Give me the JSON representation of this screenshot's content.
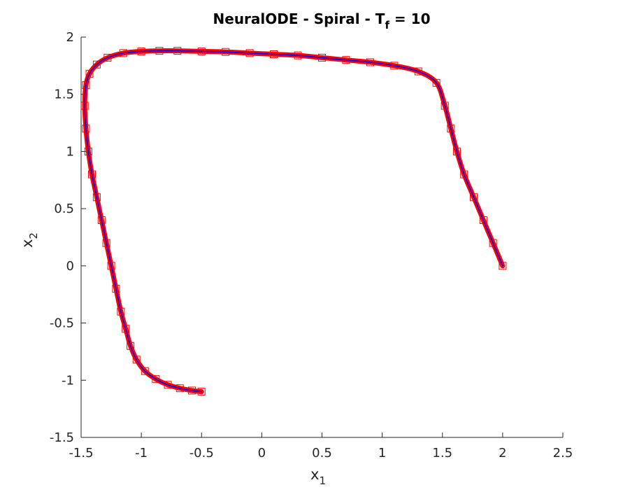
{
  "chart_data": {
    "type": "line",
    "title": {
      "prefix": "NeuralODE - Spiral - T",
      "subscript": "f",
      "suffix": " = 10"
    },
    "xlabel": {
      "base": "x",
      "subscript": "1"
    },
    "ylabel": {
      "base": "x",
      "subscript": "2"
    },
    "xlim": [
      -1.5,
      2.5
    ],
    "ylim": [
      -1.5,
      2
    ],
    "xticks": [
      -1.5,
      -1,
      -0.5,
      0,
      0.5,
      1,
      1.5,
      2,
      2.5
    ],
    "xtick_labels": [
      "-1.5",
      "-1",
      "-0.5",
      "0",
      "0.5",
      "1",
      "1.5",
      "2",
      "2.5"
    ],
    "yticks": [
      -1.5,
      -1,
      -0.5,
      0,
      0.5,
      1,
      1.5,
      2
    ],
    "ytick_labels": [
      "-1.5",
      "-1",
      "-0.5",
      "0",
      "0.5",
      "1",
      "1.5",
      "2"
    ],
    "grid": false,
    "colors": {
      "true_trajectory": "#ff0000",
      "predicted_trajectory": "#0000ff",
      "axes": "#262626"
    },
    "series": [
      {
        "marker": "square",
        "color": "#ff0000",
        "x": [
          2.0,
          1.92,
          1.84,
          1.76,
          1.68,
          1.62,
          1.57,
          1.52,
          1.45,
          1.3,
          1.1,
          0.9,
          0.7,
          0.5,
          0.3,
          0.1,
          -0.1,
          -0.3,
          -0.5,
          -0.7,
          -0.85,
          -1.0,
          -1.15,
          -1.28,
          -1.37,
          -1.43,
          -1.46,
          -1.47,
          -1.46,
          -1.44,
          -1.41,
          -1.37,
          -1.33,
          -1.29,
          -1.25,
          -1.21,
          -1.17,
          -1.13,
          -1.09,
          -1.04,
          -0.97,
          -0.88,
          -0.78,
          -0.68,
          -0.58,
          -0.5
        ],
        "y": [
          0.0,
          0.2,
          0.4,
          0.6,
          0.8,
          1.0,
          1.2,
          1.4,
          1.6,
          1.7,
          1.75,
          1.78,
          1.8,
          1.82,
          1.84,
          1.85,
          1.86,
          1.87,
          1.875,
          1.88,
          1.88,
          1.875,
          1.86,
          1.82,
          1.76,
          1.68,
          1.58,
          1.4,
          1.2,
          1.0,
          0.8,
          0.6,
          0.4,
          0.2,
          0.0,
          -0.2,
          -0.4,
          -0.55,
          -0.7,
          -0.82,
          -0.92,
          -0.99,
          -1.04,
          -1.07,
          -1.09,
          -1.1
        ]
      },
      {
        "marker": "line",
        "color": "#0000ff",
        "x": [
          2.0,
          1.92,
          1.84,
          1.76,
          1.68,
          1.62,
          1.57,
          1.52,
          1.45,
          1.3,
          1.1,
          0.9,
          0.7,
          0.5,
          0.3,
          0.1,
          -0.1,
          -0.3,
          -0.5,
          -0.7,
          -0.85,
          -1.0,
          -1.15,
          -1.28,
          -1.37,
          -1.43,
          -1.46,
          -1.47,
          -1.46,
          -1.44,
          -1.41,
          -1.37,
          -1.33,
          -1.29,
          -1.25,
          -1.21,
          -1.17,
          -1.13,
          -1.09,
          -1.04,
          -0.97,
          -0.88,
          -0.78,
          -0.68,
          -0.58,
          -0.5
        ],
        "y": [
          0.0,
          0.2,
          0.4,
          0.6,
          0.8,
          1.0,
          1.2,
          1.4,
          1.6,
          1.7,
          1.75,
          1.78,
          1.8,
          1.82,
          1.84,
          1.85,
          1.86,
          1.87,
          1.875,
          1.88,
          1.88,
          1.875,
          1.86,
          1.82,
          1.76,
          1.68,
          1.58,
          1.4,
          1.2,
          1.0,
          0.8,
          0.6,
          0.4,
          0.2,
          0.0,
          -0.2,
          -0.4,
          -0.55,
          -0.7,
          -0.82,
          -0.92,
          -0.99,
          -1.04,
          -1.07,
          -1.09,
          -1.1
        ]
      }
    ]
  }
}
